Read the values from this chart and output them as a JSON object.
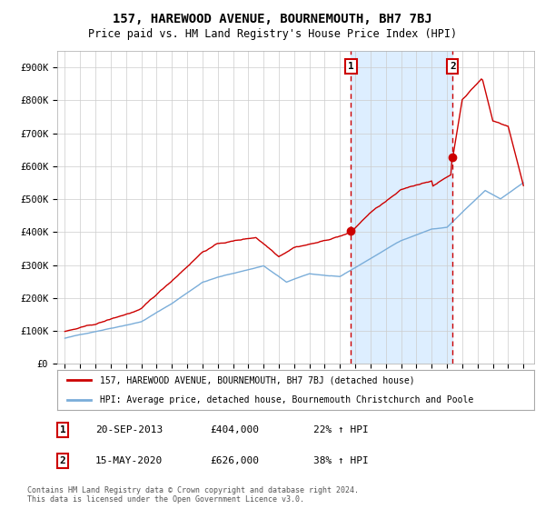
{
  "title": "157, HAREWOOD AVENUE, BOURNEMOUTH, BH7 7BJ",
  "subtitle": "Price paid vs. HM Land Registry's House Price Index (HPI)",
  "legend_line1": "157, HAREWOOD AVENUE, BOURNEMOUTH, BH7 7BJ (detached house)",
  "legend_line2": "HPI: Average price, detached house, Bournemouth Christchurch and Poole",
  "footnote": "Contains HM Land Registry data © Crown copyright and database right 2024.\nThis data is licensed under the Open Government Licence v3.0.",
  "transaction1_date": "20-SEP-2013",
  "transaction1_price": "£404,000",
  "transaction1_hpi": "22% ↑ HPI",
  "transaction1_year": 2013.72,
  "transaction1_price_val": 404000,
  "transaction2_date": "15-MAY-2020",
  "transaction2_price": "£626,000",
  "transaction2_hpi": "38% ↑ HPI",
  "transaction2_year": 2020.37,
  "transaction2_price_val": 626000,
  "red_line_color": "#cc0000",
  "blue_line_color": "#7aadd9",
  "shade_color": "#ddeeff",
  "grid_color": "#cccccc",
  "bg_color": "#ffffff",
  "ylim": [
    0,
    950000
  ],
  "yticks": [
    0,
    100000,
    200000,
    300000,
    400000,
    500000,
    600000,
    700000,
    800000,
    900000
  ],
  "ytick_labels": [
    "£0",
    "£100K",
    "£200K",
    "£300K",
    "£400K",
    "£500K",
    "£600K",
    "£700K",
    "£800K",
    "£900K"
  ],
  "xlim": [
    1994.5,
    2025.7
  ],
  "xticks": [
    1995,
    1996,
    1997,
    1998,
    1999,
    2000,
    2001,
    2002,
    2003,
    2004,
    2005,
    2006,
    2007,
    2008,
    2009,
    2010,
    2011,
    2012,
    2013,
    2014,
    2015,
    2016,
    2017,
    2018,
    2019,
    2020,
    2021,
    2022,
    2023,
    2024,
    2025
  ]
}
